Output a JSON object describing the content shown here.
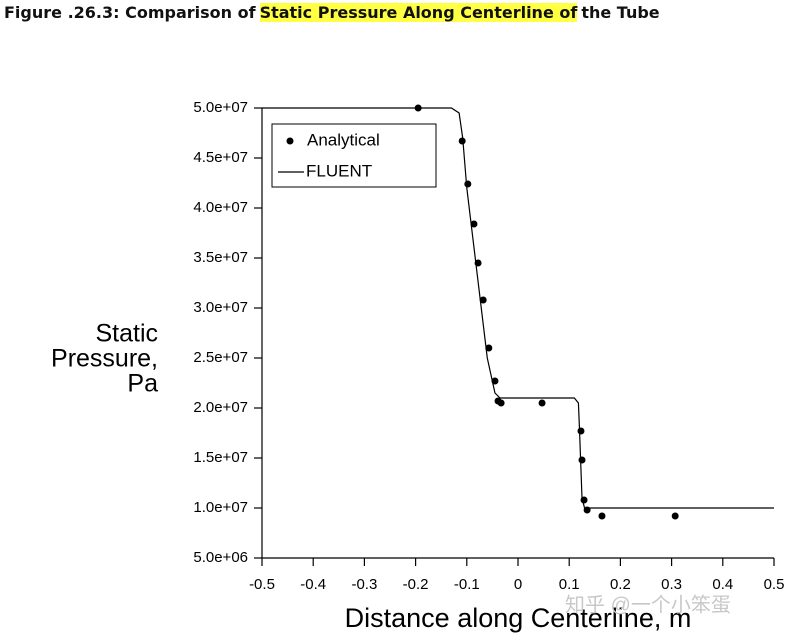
{
  "caption": {
    "before": "Figure .26.3: Comparison of",
    "highlight": "Static Pressure Along Centerline of",
    "after": "the Tube"
  },
  "watermark": "知乎 @一个小笨蛋",
  "chart_data": {
    "type": "line",
    "xlabel": "Distance along Centerline, m",
    "ylabel": [
      "Static",
      "Pressure,",
      "Pa"
    ],
    "xlim": [
      -0.5,
      0.5
    ],
    "ylim": [
      5000000,
      50000000
    ],
    "xticks": [
      -0.5,
      -0.4,
      -0.3,
      -0.2,
      -0.1,
      0,
      0.1,
      0.2,
      0.3,
      0.4,
      0.5
    ],
    "yticks": [
      {
        "value": 5000000,
        "label": "5.0e+06"
      },
      {
        "value": 10000000,
        "label": "1.0e+07"
      },
      {
        "value": 15000000,
        "label": "1.5e+07"
      },
      {
        "value": 20000000,
        "label": "2.0e+07"
      },
      {
        "value": 25000000,
        "label": "2.5e+07"
      },
      {
        "value": 30000000,
        "label": "3.0e+07"
      },
      {
        "value": 35000000,
        "label": "3.5e+07"
      },
      {
        "value": 40000000,
        "label": "4.0e+07"
      },
      {
        "value": 45000000,
        "label": "4.5e+07"
      },
      {
        "value": 50000000,
        "label": "5.0e+07"
      }
    ],
    "legend": "upper left",
    "series": [
      {
        "name": "Analytical",
        "mode": "markers",
        "color": "#000000",
        "x": [
          -0.195,
          -0.109,
          -0.098,
          -0.086,
          -0.078,
          -0.068,
          -0.057,
          -0.045,
          -0.039,
          -0.033,
          0.047,
          0.123,
          0.125,
          0.129,
          0.135,
          0.164,
          0.307
        ],
        "values": [
          50000000,
          46700000,
          42400000,
          38400000,
          34500000,
          30800000,
          26000000,
          22700000,
          20700000,
          20500000,
          20500000,
          17700000,
          14800000,
          10800000,
          9800000,
          9200000,
          9200000
        ]
      },
      {
        "name": "FLUENT",
        "mode": "lines",
        "color": "#000000",
        "x": [
          -0.5,
          -0.13,
          -0.115,
          -0.108,
          -0.1,
          -0.06,
          -0.045,
          -0.035,
          0.11,
          0.118,
          0.12,
          0.125,
          0.13,
          0.14,
          0.5
        ],
        "values": [
          50000000,
          50000000,
          49500000,
          47000000,
          42000000,
          25000000,
          21500000,
          21000000,
          21000000,
          20500000,
          18000000,
          11000000,
          10000000,
          10000000,
          10000000
        ]
      }
    ]
  }
}
